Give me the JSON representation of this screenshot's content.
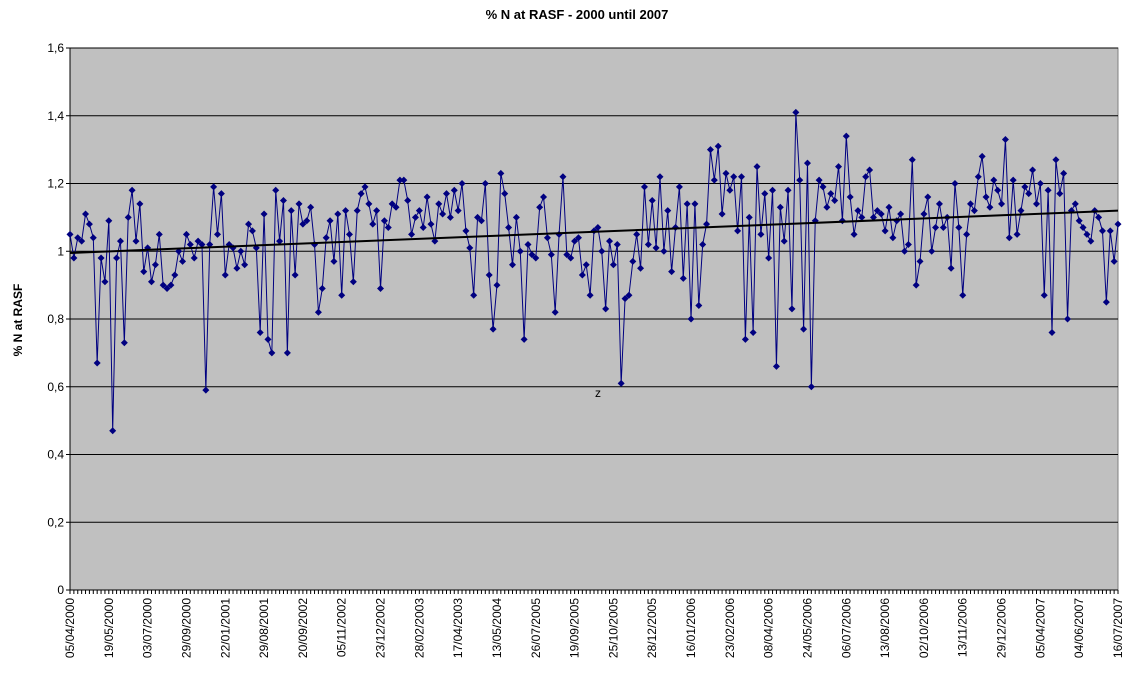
{
  "chart_data": {
    "type": "line",
    "title": "% N at RASF - 2000  until 2007",
    "y_label": "% N at RASF",
    "categories": [
      "05/04/2000",
      null,
      null,
      null,
      null,
      null,
      null,
      null,
      null,
      null,
      "19/05/2000",
      null,
      null,
      null,
      null,
      null,
      null,
      null,
      null,
      null,
      "03/07/2000",
      null,
      null,
      null,
      null,
      null,
      null,
      null,
      null,
      null,
      "29/09/2000",
      null,
      null,
      null,
      null,
      null,
      null,
      null,
      null,
      null,
      "22/01/2001",
      null,
      null,
      null,
      null,
      null,
      null,
      null,
      null,
      null,
      "29/08/2001",
      null,
      null,
      null,
      null,
      null,
      null,
      null,
      null,
      null,
      "20/09/2002",
      null,
      null,
      null,
      null,
      null,
      null,
      null,
      null,
      null,
      "05/11/2002",
      null,
      null,
      null,
      null,
      null,
      null,
      null,
      null,
      null,
      "23/12/2002",
      null,
      null,
      null,
      null,
      null,
      null,
      null,
      null,
      null,
      "28/02/2003",
      null,
      null,
      null,
      null,
      null,
      null,
      null,
      null,
      null,
      "17/04/2003",
      null,
      null,
      null,
      null,
      null,
      null,
      null,
      null,
      null,
      "13/05/2004",
      null,
      null,
      null,
      null,
      null,
      null,
      null,
      null,
      null,
      "26/07/2005",
      null,
      null,
      null,
      null,
      null,
      null,
      null,
      null,
      null,
      "19/09/2005",
      null,
      null,
      null,
      null,
      null,
      null,
      null,
      null,
      null,
      "25/10/2005",
      null,
      null,
      null,
      null,
      null,
      null,
      null,
      null,
      null,
      "28/12/2005",
      null,
      null,
      null,
      null,
      null,
      null,
      null,
      null,
      null,
      "16/01/2006",
      null,
      null,
      null,
      null,
      null,
      null,
      null,
      null,
      null,
      "23/02/2006",
      null,
      null,
      null,
      null,
      null,
      null,
      null,
      null,
      null,
      "08/04/2006",
      null,
      null,
      null,
      null,
      null,
      null,
      null,
      null,
      null,
      "24/05/2006",
      null,
      null,
      null,
      null,
      null,
      null,
      null,
      null,
      null,
      "06/07/2006",
      null,
      null,
      null,
      null,
      null,
      null,
      null,
      null,
      null,
      "13/08/2006",
      null,
      null,
      null,
      null,
      null,
      null,
      null,
      null,
      null,
      "02/10/2006",
      null,
      null,
      null,
      null,
      null,
      null,
      null,
      null,
      null,
      "13/11/2006",
      null,
      null,
      null,
      null,
      null,
      null,
      null,
      null,
      null,
      "29/12/2006",
      null,
      null,
      null,
      null,
      null,
      null,
      null,
      null,
      null,
      "05/04/2007",
      null,
      null,
      null,
      null,
      null,
      null,
      null,
      null,
      null,
      "04/06/2007",
      null,
      null,
      null,
      null,
      null,
      null,
      null,
      null,
      null,
      "16/07/2007"
    ],
    "values": [
      1.05,
      0.98,
      1.04,
      1.03,
      1.11,
      1.08,
      1.04,
      0.67,
      0.98,
      0.91,
      1.09,
      0.47,
      0.98,
      1.03,
      0.73,
      1.1,
      1.18,
      1.03,
      1.14,
      0.94,
      1.01,
      0.91,
      0.96,
      1.05,
      0.9,
      0.89,
      0.9,
      0.93,
      1.0,
      0.97,
      1.05,
      1.02,
      0.98,
      1.03,
      1.02,
      0.59,
      1.02,
      1.19,
      1.05,
      1.17,
      0.93,
      1.02,
      1.01,
      0.95,
      1.0,
      0.96,
      1.08,
      1.06,
      1.01,
      0.76,
      1.11,
      0.74,
      0.7,
      1.18,
      1.03,
      1.15,
      0.7,
      1.12,
      0.93,
      1.14,
      1.08,
      1.09,
      1.13,
      1.02,
      0.82,
      0.89,
      1.04,
      1.09,
      0.97,
      1.11,
      0.87,
      1.12,
      1.05,
      0.91,
      1.12,
      1.17,
      1.19,
      1.14,
      1.08,
      1.12,
      0.89,
      1.09,
      1.07,
      1.14,
      1.13,
      1.21,
      1.21,
      1.15,
      1.05,
      1.1,
      1.12,
      1.07,
      1.16,
      1.08,
      1.03,
      1.14,
      1.11,
      1.17,
      1.1,
      1.18,
      1.12,
      1.2,
      1.06,
      1.01,
      0.87,
      1.1,
      1.09,
      1.2,
      0.93,
      0.77,
      0.9,
      1.23,
      1.17,
      1.07,
      0.96,
      1.1,
      1.0,
      0.74,
      1.02,
      0.99,
      0.98,
      1.13,
      1.16,
      1.04,
      0.99,
      0.82,
      1.05,
      1.22,
      0.99,
      0.98,
      1.03,
      1.04,
      0.93,
      0.96,
      0.87,
      1.06,
      1.07,
      1.0,
      0.83,
      1.03,
      0.96,
      1.02,
      0.61,
      0.86,
      0.87,
      0.97,
      1.05,
      0.95,
      1.19,
      1.02,
      1.15,
      1.01,
      1.22,
      1.0,
      1.12,
      0.94,
      1.07,
      1.19,
      0.92,
      1.14,
      0.8,
      1.14,
      0.84,
      1.02,
      1.08,
      1.3,
      1.21,
      1.31,
      1.11,
      1.23,
      1.18,
      1.22,
      1.06,
      1.22,
      0.74,
      1.1,
      0.76,
      1.25,
      1.05,
      1.17,
      0.98,
      1.18,
      0.66,
      1.13,
      1.03,
      1.18,
      0.83,
      1.41,
      1.21,
      0.77,
      1.26,
      0.6,
      1.09,
      1.21,
      1.19,
      1.13,
      1.17,
      1.15,
      1.25,
      1.09,
      1.34,
      1.16,
      1.05,
      1.12,
      1.1,
      1.22,
      1.24,
      1.1,
      1.12,
      1.11,
      1.06,
      1.13,
      1.04,
      1.09,
      1.11,
      1.0,
      1.02,
      1.27,
      0.9,
      0.97,
      1.11,
      1.16,
      1.0,
      1.07,
      1.14,
      1.07,
      1.1,
      0.95,
      1.2,
      1.07,
      0.87,
      1.05,
      1.14,
      1.12,
      1.22,
      1.28,
      1.16,
      1.13,
      1.21,
      1.18,
      1.14,
      1.33,
      1.04,
      1.21,
      1.05,
      1.12,
      1.19,
      1.17,
      1.24,
      1.14,
      1.2,
      0.87,
      1.18,
      0.76,
      1.27,
      1.17,
      1.23,
      0.8,
      1.12,
      1.14,
      1.09,
      1.07,
      1.05,
      1.03,
      1.12,
      1.1,
      1.06,
      0.85,
      1.06,
      0.97,
      1.08
    ],
    "color": "#000080",
    "trendline": {
      "start": 0.995,
      "end": 1.12,
      "color": "#000000"
    },
    "annotations": [
      {
        "text": "z"
      }
    ],
    "ylim": [
      0,
      1.6
    ],
    "yticks": [
      0,
      {
        "value": 0.2,
        "label": "0,2"
      },
      {
        "value": 0.4,
        "label": "0,4"
      },
      {
        "value": 0.6,
        "label": "0,6"
      },
      {
        "value": 0.8,
        "label": "0,8"
      },
      1,
      {
        "value": 1.2,
        "label": "1,2"
      },
      {
        "value": 1.4,
        "label": "1,4"
      },
      {
        "value": 1.6,
        "label": "1,6"
      }
    ],
    "grid": true,
    "background": "#c0c0c0"
  }
}
